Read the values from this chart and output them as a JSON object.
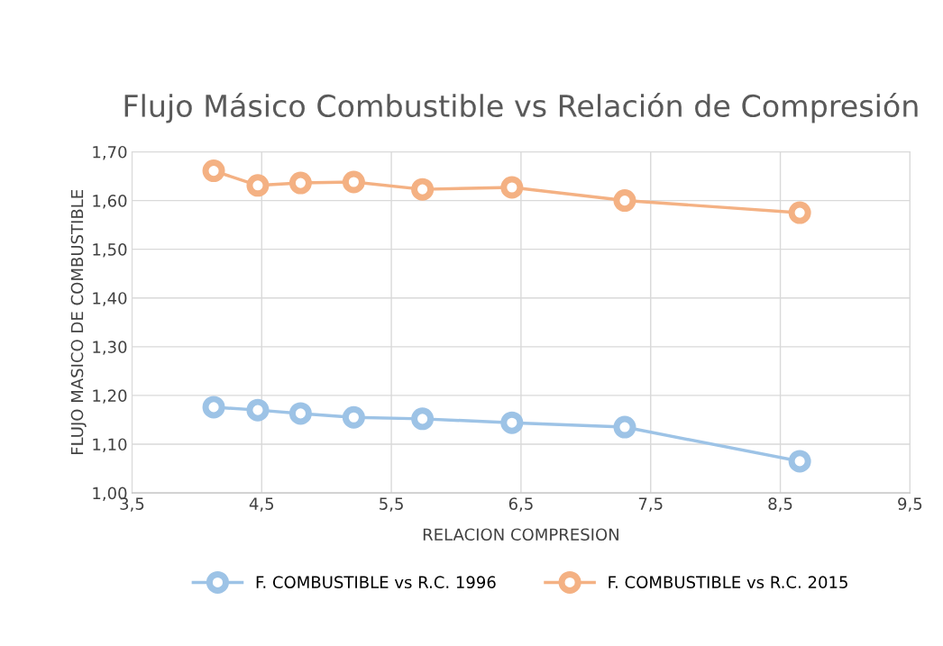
{
  "chart_data": {
    "type": "line",
    "title": "Flujo Másico Combustible vs Relación de Compresión",
    "xlabel": "RELACION COMPRESION",
    "ylabel": "FLUJO MASICO DE COMBUSTIBLE",
    "x": [
      4.13,
      4.47,
      4.8,
      5.21,
      5.74,
      6.43,
      7.3,
      8.65
    ],
    "series": [
      {
        "name": "F. COMBUSTIBLE vs R.C. 1996",
        "color": "#9dc3e6",
        "values": [
          1.176,
          1.17,
          1.163,
          1.155,
          1.152,
          1.144,
          1.135,
          1.065
        ]
      },
      {
        "name": "F. COMBUSTIBLE vs R.C. 2015",
        "color": "#f4b183",
        "values": [
          1.661,
          1.631,
          1.636,
          1.638,
          1.623,
          1.627,
          1.6,
          1.575
        ]
      }
    ],
    "xlim": [
      3.5,
      9.5
    ],
    "xticks": [
      {
        "value": 3.5,
        "label": "3,5"
      },
      {
        "value": 4.5,
        "label": "4,5"
      },
      {
        "value": 5.5,
        "label": "5,5"
      },
      {
        "value": 6.5,
        "label": "6,5"
      },
      {
        "value": 7.5,
        "label": "7,5"
      },
      {
        "value": 8.5,
        "label": "8,5"
      },
      {
        "value": 9.5,
        "label": "9,5"
      }
    ],
    "ylim": [
      1.0,
      1.7
    ],
    "yticks": [
      {
        "value": 1.0,
        "label": "1,00"
      },
      {
        "value": 1.1,
        "label": "1,10"
      },
      {
        "value": 1.2,
        "label": "1,20"
      },
      {
        "value": 1.3,
        "label": "1,30"
      },
      {
        "value": 1.4,
        "label": "1,40"
      },
      {
        "value": 1.5,
        "label": "1,50"
      },
      {
        "value": 1.6,
        "label": "1,60"
      },
      {
        "value": 1.7,
        "label": "1,70"
      }
    ],
    "grid": true,
    "legend": "bottom",
    "marker": "circle",
    "line_style": "solid"
  }
}
